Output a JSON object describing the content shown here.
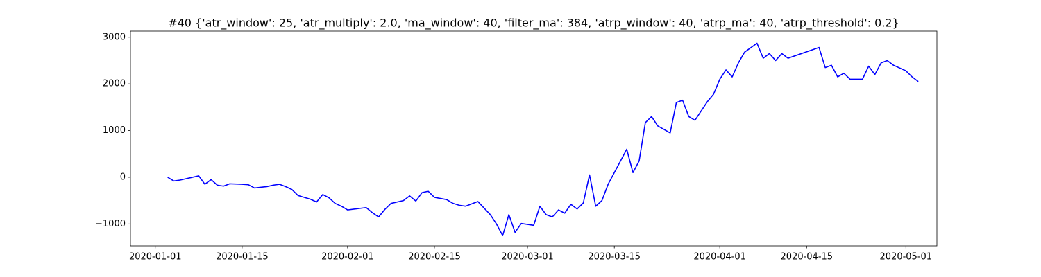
{
  "chart_data": {
    "type": "line",
    "title": "#40 {'atr_window': 25, 'atr_multiply': 2.0, 'ma_window': 40, 'filter_ma': 384, 'atrp_window': 40, 'atrp_ma': 40, 'atrp_threshold': 0.2}",
    "color": "#0000ff",
    "x": [
      "2020-01-03",
      "2020-01-04",
      "2020-01-05",
      "2020-01-07",
      "2020-01-08",
      "2020-01-09",
      "2020-01-10",
      "2020-01-11",
      "2020-01-12",
      "2020-01-13",
      "2020-01-15",
      "2020-01-16",
      "2020-01-17",
      "2020-01-19",
      "2020-01-20",
      "2020-01-21",
      "2020-01-22",
      "2020-01-23",
      "2020-01-24",
      "2020-01-26",
      "2020-01-27",
      "2020-01-28",
      "2020-01-29",
      "2020-01-30",
      "2020-01-31",
      "2020-02-01",
      "2020-02-04",
      "2020-02-05",
      "2020-02-06",
      "2020-02-07",
      "2020-02-08",
      "2020-02-10",
      "2020-02-11",
      "2020-02-12",
      "2020-02-13",
      "2020-02-14",
      "2020-02-15",
      "2020-02-17",
      "2020-02-18",
      "2020-02-19",
      "2020-02-20",
      "2020-02-22",
      "2020-02-24",
      "2020-02-25",
      "2020-02-26",
      "2020-02-27",
      "2020-02-28",
      "2020-02-29",
      "2020-03-02",
      "2020-03-03",
      "2020-03-04",
      "2020-03-05",
      "2020-03-06",
      "2020-03-07",
      "2020-03-08",
      "2020-03-09",
      "2020-03-10",
      "2020-03-11",
      "2020-03-12",
      "2020-03-13",
      "2020-03-14",
      "2020-03-17",
      "2020-03-18",
      "2020-03-19",
      "2020-03-20",
      "2020-03-21",
      "2020-03-22",
      "2020-03-24",
      "2020-03-25",
      "2020-03-26",
      "2020-03-27",
      "2020-03-28",
      "2020-03-30",
      "2020-03-31",
      "2020-04-01",
      "2020-04-02",
      "2020-04-03",
      "2020-04-04",
      "2020-04-05",
      "2020-04-07",
      "2020-04-08",
      "2020-04-09",
      "2020-04-10",
      "2020-04-11",
      "2020-04-12",
      "2020-04-17",
      "2020-04-18",
      "2020-04-19",
      "2020-04-20",
      "2020-04-21",
      "2020-04-22",
      "2020-04-24",
      "2020-04-25",
      "2020-04-26",
      "2020-04-27",
      "2020-04-28",
      "2020-04-29",
      "2020-05-01",
      "2020-05-02",
      "2020-05-03"
    ],
    "values": [
      0,
      -80,
      -60,
      0,
      30,
      -150,
      -50,
      -170,
      -190,
      -140,
      -150,
      -160,
      -230,
      -200,
      -170,
      -150,
      -200,
      -260,
      -390,
      -470,
      -530,
      -370,
      -440,
      -560,
      -620,
      -700,
      -650,
      -760,
      -850,
      -690,
      -560,
      -500,
      -400,
      -510,
      -330,
      -300,
      -430,
      -480,
      -560,
      -600,
      -620,
      -520,
      -800,
      -1000,
      -1250,
      -800,
      -1180,
      -990,
      -1030,
      -620,
      -800,
      -850,
      -700,
      -770,
      -580,
      -680,
      -550,
      50,
      -620,
      -500,
      -150,
      600,
      100,
      350,
      1170,
      1300,
      1100,
      950,
      1600,
      1650,
      1300,
      1220,
      1620,
      1780,
      2100,
      2300,
      2150,
      2450,
      2680,
      2870,
      2550,
      2650,
      2500,
      2650,
      2550,
      2780,
      2350,
      2400,
      2150,
      2230,
      2100,
      2100,
      2380,
      2200,
      2450,
      2500,
      2400,
      2280,
      2150,
      2050
    ],
    "xlim": [
      "2019-12-28",
      "2020-05-06"
    ],
    "xticks": [
      "2020-01-01",
      "2020-01-15",
      "2020-02-01",
      "2020-02-15",
      "2020-03-01",
      "2020-03-15",
      "2020-04-01",
      "2020-04-15",
      "2020-05-01"
    ],
    "ylim": [
      -1470,
      3130
    ],
    "yticks": [
      {
        "value": -1000,
        "label": "−1000"
      },
      0,
      1000,
      2000,
      3000
    ]
  }
}
